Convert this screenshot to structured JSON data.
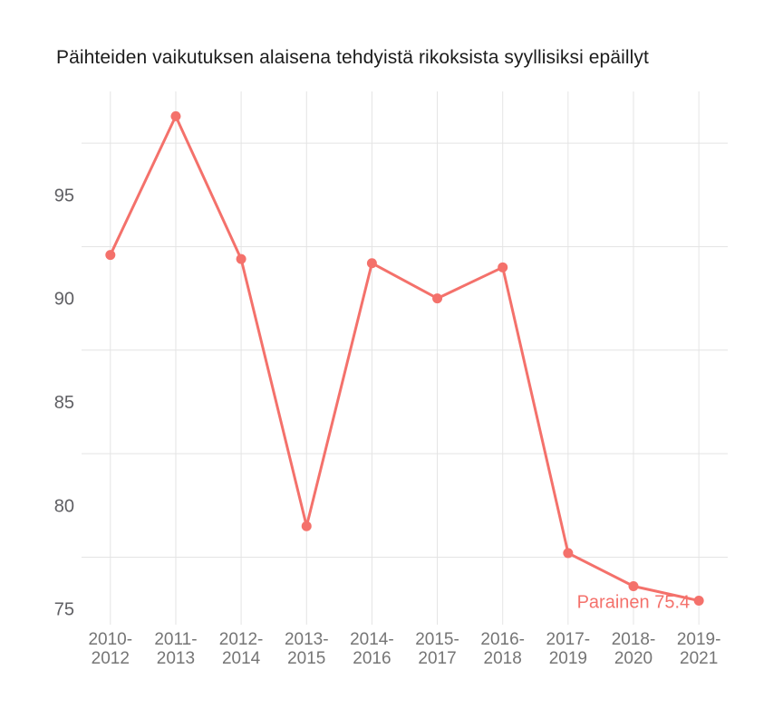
{
  "page": {
    "background": "#ffffff"
  },
  "chart_data": {
    "type": "line",
    "title": "Päihteiden vaikutuksen alaisena tehdyistä rikoksista syyllisiksi epäillyt",
    "categories": [
      "2010-2012",
      "2011-2013",
      "2012-2014",
      "2013-2015",
      "2014-2016",
      "2015-2017",
      "2016-2018",
      "2017-2019",
      "2018-2020",
      "2019-2021"
    ],
    "category_label_lines": [
      [
        "2010-",
        "2012"
      ],
      [
        "2011-",
        "2013"
      ],
      [
        "2012-",
        "2014"
      ],
      [
        "2013-",
        "2015"
      ],
      [
        "2014-",
        "2016"
      ],
      [
        "2015-",
        "2017"
      ],
      [
        "2016-",
        "2018"
      ],
      [
        "2017-",
        "2019"
      ],
      [
        "2018-",
        "2020"
      ],
      [
        "2019-",
        "2021"
      ]
    ],
    "series": [
      {
        "name": "Parainen",
        "values": [
          92.1,
          98.8,
          91.9,
          79.0,
          91.7,
          90.0,
          91.5,
          77.7,
          76.1,
          75.4
        ]
      }
    ],
    "annotation": {
      "text": "Parainen 75.4",
      "point_index": 9,
      "value": 75.4
    },
    "xlabel": "",
    "ylabel": "",
    "legend": "none",
    "grid": "horizontal-and-vertical",
    "y_axis": {
      "tick_values": [
        75,
        80,
        85,
        90,
        95
      ],
      "tick_labels": [
        "75",
        "80",
        "85",
        "90",
        "95"
      ],
      "gridline_values": [
        77.5,
        82.5,
        87.5,
        92.5,
        97.5
      ],
      "ylim": [
        74.2,
        100.0
      ]
    },
    "colors": {
      "series": "#f4716b",
      "grid": "#e4e4e4",
      "y_label_text": "#5f5f63",
      "x_label_text": "#757575",
      "title_text": "#1c1c1c",
      "background": "#ffffff"
    }
  }
}
